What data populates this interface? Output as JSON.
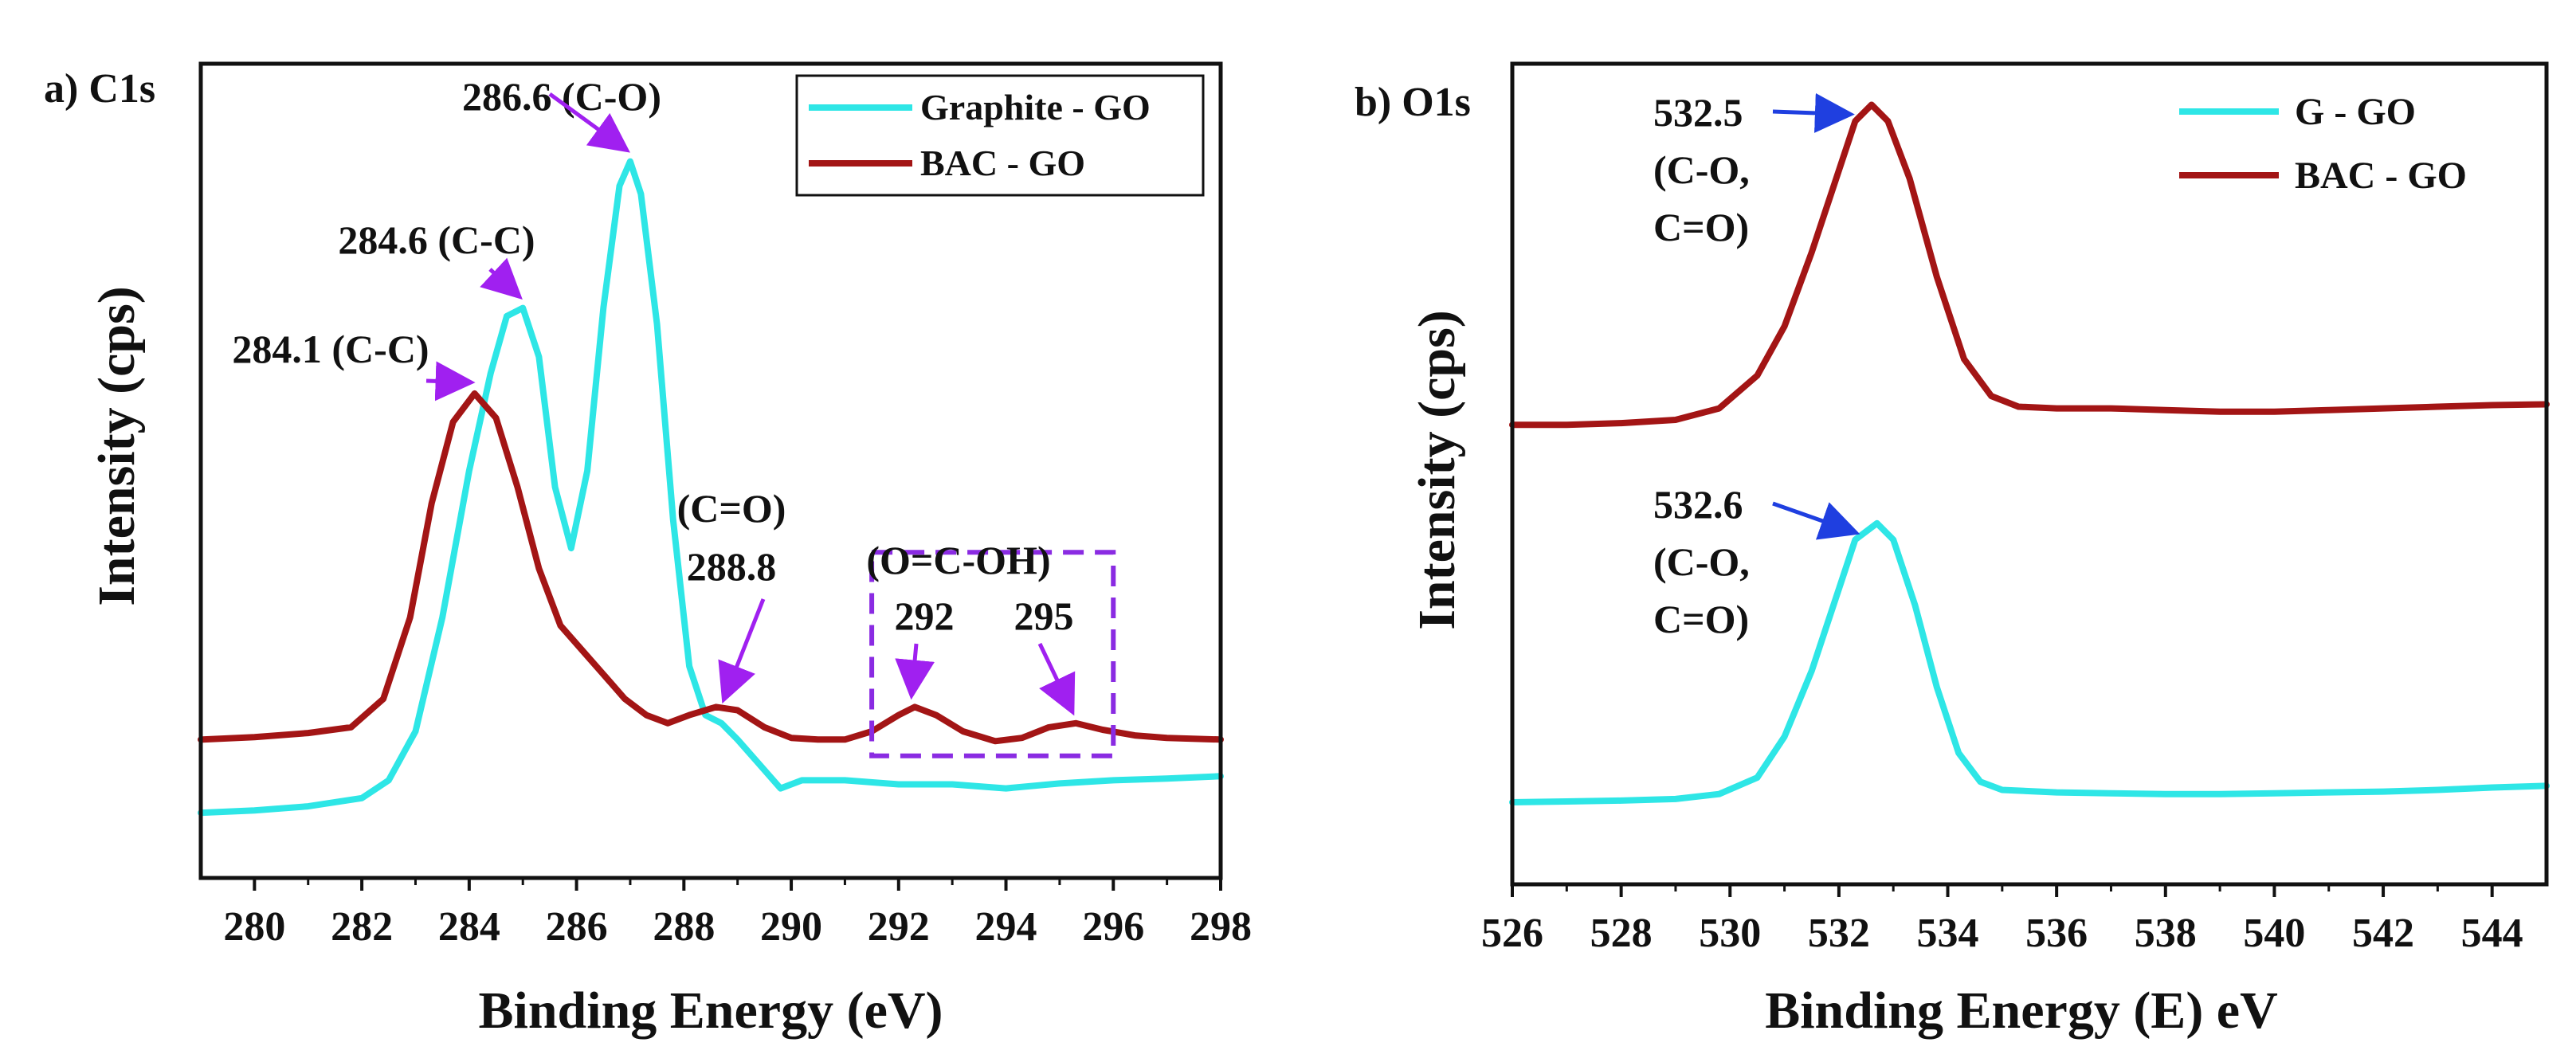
{
  "chart_data": [
    {
      "type": "line",
      "panel_label": "a) C1s",
      "xlabel": "Binding Energy (eV)",
      "ylabel": "Intensity (cps)",
      "xlim": [
        279,
        298
      ],
      "ylim": [
        0,
        100
      ],
      "x_ticks": [
        280,
        282,
        284,
        286,
        288,
        290,
        292,
        294,
        296,
        298
      ],
      "y_ticks_shown": false,
      "legend": {
        "position": "top-right",
        "entries": [
          "Graphite - GO",
          "BAC - GO"
        ]
      },
      "series": [
        {
          "name": "Graphite - GO",
          "color": "#2ee6e6",
          "points": [
            [
              279,
              8
            ],
            [
              280,
              8.3
            ],
            [
              281,
              8.8
            ],
            [
              282,
              9.8
            ],
            [
              282.5,
              12
            ],
            [
              283,
              18
            ],
            [
              283.5,
              32
            ],
            [
              284,
              50
            ],
            [
              284.4,
              62
            ],
            [
              284.7,
              69
            ],
            [
              285,
              70
            ],
            [
              285.3,
              64
            ],
            [
              285.6,
              48
            ],
            [
              285.9,
              40.5
            ],
            [
              286.2,
              50
            ],
            [
              286.5,
              70
            ],
            [
              286.8,
              85
            ],
            [
              287,
              88
            ],
            [
              287.2,
              84
            ],
            [
              287.5,
              68
            ],
            [
              287.8,
              44
            ],
            [
              288.1,
              26
            ],
            [
              288.4,
              20
            ],
            [
              288.7,
              19
            ],
            [
              289,
              17
            ],
            [
              289.4,
              14
            ],
            [
              289.8,
              11
            ],
            [
              290.2,
              12
            ],
            [
              291,
              12
            ],
            [
              292,
              11.5
            ],
            [
              293,
              11.5
            ],
            [
              294,
              11
            ],
            [
              295,
              11.6
            ],
            [
              296,
              12
            ],
            [
              297,
              12.2
            ],
            [
              298,
              12.5
            ]
          ]
        },
        {
          "name": "BAC - GO",
          "color": "#a31515",
          "points": [
            [
              279,
              17
            ],
            [
              280,
              17.3
            ],
            [
              281,
              17.8
            ],
            [
              281.8,
              18.5
            ],
            [
              282.4,
              22
            ],
            [
              282.9,
              32
            ],
            [
              283.3,
              46
            ],
            [
              283.7,
              56
            ],
            [
              284.1,
              59.5
            ],
            [
              284.5,
              56.5
            ],
            [
              284.9,
              48
            ],
            [
              285.3,
              38
            ],
            [
              285.7,
              31
            ],
            [
              286.1,
              28
            ],
            [
              286.5,
              25
            ],
            [
              286.9,
              22
            ],
            [
              287.3,
              20
            ],
            [
              287.7,
              19
            ],
            [
              288.1,
              20
            ],
            [
              288.6,
              21
            ],
            [
              289,
              20.6
            ],
            [
              289.5,
              18.5
            ],
            [
              290,
              17.2
            ],
            [
              290.5,
              17
            ],
            [
              291,
              17
            ],
            [
              291.5,
              18
            ],
            [
              292,
              20
            ],
            [
              292.3,
              21
            ],
            [
              292.7,
              20
            ],
            [
              293.2,
              18
            ],
            [
              293.8,
              16.8
            ],
            [
              294.3,
              17.2
            ],
            [
              294.8,
              18.5
            ],
            [
              295.3,
              19
            ],
            [
              295.8,
              18.2
            ],
            [
              296.4,
              17.5
            ],
            [
              297,
              17.2
            ],
            [
              298,
              17
            ]
          ]
        }
      ],
      "annotations": [
        {
          "text": "286.6 (C-O)",
          "x": 287,
          "y": 88
        },
        {
          "text": "284.6 (C-C)",
          "x": 285,
          "y": 70
        },
        {
          "text": "284.1 (C-C)",
          "x": 284.1,
          "y": 59.5
        },
        {
          "text": "(C=O)",
          "x": 288.8,
          "y": 38
        },
        {
          "text": "288.8",
          "x": 288.8,
          "y": 20.5
        },
        {
          "text": "(O=C-OH)",
          "x": 293.8,
          "y": 32
        },
        {
          "text": "292",
          "x": 292.3,
          "y": 21
        },
        {
          "text": "295",
          "x": 295.3,
          "y": 19
        }
      ],
      "highlight_box": {
        "x": [
          291.5,
          296
        ],
        "y": [
          15,
          40
        ]
      }
    },
    {
      "type": "line",
      "panel_label": "b) O1s",
      "xlabel": "Binding Energy (E) eV",
      "ylabel": "Intensity (cps)",
      "xlim": [
        526,
        545
      ],
      "ylim": [
        0,
        100
      ],
      "x_ticks": [
        526,
        528,
        530,
        532,
        534,
        536,
        538,
        540,
        542,
        544
      ],
      "y_ticks_shown": false,
      "legend": {
        "position": "top-right",
        "entries": [
          "G - GO",
          "BAC - GO"
        ]
      },
      "series": [
        {
          "name": "G - GO",
          "color": "#2ee6e6",
          "points": [
            [
              526,
              10
            ],
            [
              527,
              10.1
            ],
            [
              528,
              10.2
            ],
            [
              529,
              10.4
            ],
            [
              529.8,
              11
            ],
            [
              530.5,
              13
            ],
            [
              531,
              18
            ],
            [
              531.5,
              26
            ],
            [
              532,
              36
            ],
            [
              532.3,
              42
            ],
            [
              532.7,
              44
            ],
            [
              533,
              42
            ],
            [
              533.4,
              34
            ],
            [
              533.8,
              24
            ],
            [
              534.2,
              16
            ],
            [
              534.6,
              12.5
            ],
            [
              535,
              11.5
            ],
            [
              536,
              11.2
            ],
            [
              537,
              11.1
            ],
            [
              538,
              11
            ],
            [
              539,
              11
            ],
            [
              540,
              11.1
            ],
            [
              541,
              11.2
            ],
            [
              542,
              11.3
            ],
            [
              543,
              11.5
            ],
            [
              544,
              11.8
            ],
            [
              545,
              12
            ]
          ]
        },
        {
          "name": "BAC - GO",
          "color": "#a31515",
          "points": [
            [
              526,
              56
            ],
            [
              527,
              56
            ],
            [
              528,
              56.2
            ],
            [
              529,
              56.6
            ],
            [
              529.8,
              58
            ],
            [
              530.5,
              62
            ],
            [
              531,
              68
            ],
            [
              531.5,
              77
            ],
            [
              532,
              87
            ],
            [
              532.3,
              93
            ],
            [
              532.6,
              95
            ],
            [
              532.9,
              93
            ],
            [
              533.3,
              86
            ],
            [
              533.8,
              74
            ],
            [
              534.3,
              64
            ],
            [
              534.8,
              59.5
            ],
            [
              535.3,
              58.2
            ],
            [
              536,
              58
            ],
            [
              537,
              58
            ],
            [
              538,
              57.8
            ],
            [
              539,
              57.6
            ],
            [
              540,
              57.6
            ],
            [
              541,
              57.8
            ],
            [
              542,
              58
            ],
            [
              543,
              58.2
            ],
            [
              544,
              58.4
            ],
            [
              545,
              58.5
            ]
          ]
        }
      ],
      "annotations": [
        {
          "peak": "BAC - GO",
          "x": 532.6,
          "y": 95,
          "lines": [
            "532.5",
            "(C-O,",
            "C=O)"
          ]
        },
        {
          "peak": "G - GO",
          "x": 532.7,
          "y": 44,
          "lines": [
            "532.6",
            "(C-O,",
            "C=O)"
          ]
        }
      ]
    }
  ]
}
